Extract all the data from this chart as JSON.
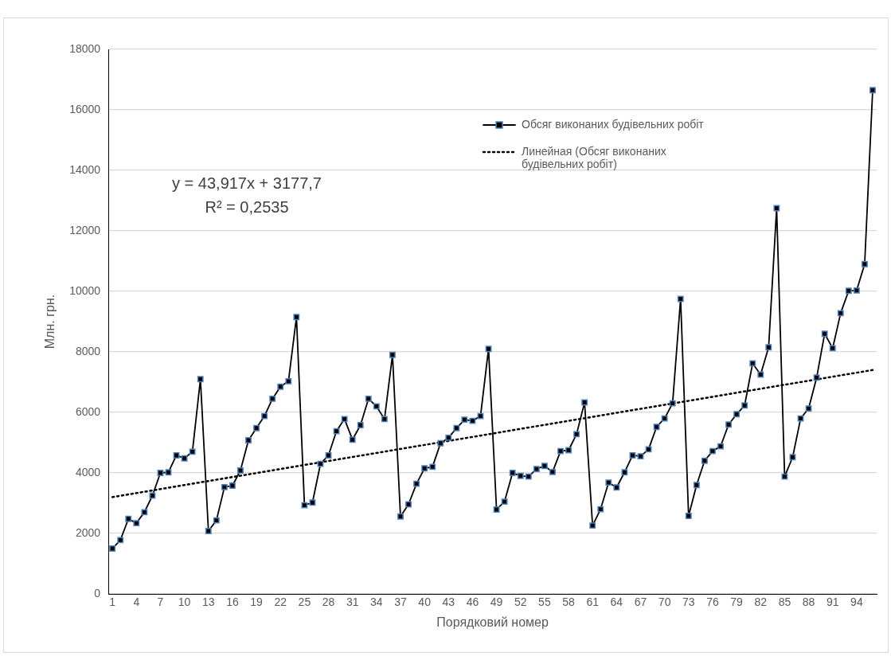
{
  "chart_data": {
    "type": "line",
    "xlabel": "Порядковий номер",
    "ylabel": "Млн. грн.",
    "x": [
      1,
      2,
      3,
      4,
      5,
      6,
      7,
      8,
      9,
      10,
      11,
      12,
      13,
      14,
      15,
      16,
      17,
      18,
      19,
      20,
      21,
      22,
      23,
      24,
      25,
      26,
      27,
      28,
      29,
      30,
      31,
      32,
      33,
      34,
      35,
      36,
      37,
      38,
      39,
      40,
      41,
      42,
      43,
      44,
      45,
      46,
      47,
      48,
      49,
      50,
      51,
      52,
      53,
      54,
      55,
      56,
      57,
      58,
      59,
      60,
      61,
      62,
      63,
      64,
      65,
      66,
      67,
      68,
      69,
      70,
      71,
      72,
      73,
      74,
      75,
      76,
      77,
      78,
      79,
      80,
      81,
      82,
      83,
      84,
      85,
      86,
      87,
      88,
      89,
      90,
      91,
      92,
      93,
      94,
      95,
      96
    ],
    "series": [
      {
        "name": "Обсяг виконаних будівельних робіт",
        "color": "#000000",
        "marker": "square",
        "line_style": "solid",
        "values": [
          1500,
          1780,
          2480,
          2340,
          2700,
          3250,
          4000,
          4020,
          4580,
          4480,
          4700,
          7100,
          2080,
          2430,
          3530,
          3580,
          4080,
          5080,
          5480,
          5880,
          6450,
          6850,
          7030,
          9150,
          2930,
          3020,
          4300,
          4580,
          5380,
          5780,
          5100,
          5580,
          6450,
          6200,
          5780,
          7900,
          2560,
          2960,
          3640,
          4150,
          4200,
          4980,
          5160,
          5480,
          5760,
          5720,
          5880,
          8100,
          2790,
          3050,
          4000,
          3900,
          3880,
          4130,
          4230,
          4030,
          4720,
          4750,
          5280,
          6330,
          2260,
          2800,
          3680,
          3520,
          4020,
          4580,
          4550,
          4780,
          5520,
          5800,
          6300,
          9750,
          2580,
          3600,
          4400,
          4720,
          4880,
          5600,
          5940,
          6230,
          7620,
          7250,
          8150,
          12750,
          3880,
          4520,
          5800,
          6130,
          7150,
          8600,
          8120,
          9280,
          10020,
          10030,
          10900,
          16650
        ]
      },
      {
        "name": "Линейная (Обсяг виконаних будівельних робіт)",
        "type": "line",
        "color": "#000000",
        "marker": "none",
        "line_style": "dotted",
        "x": [
          1,
          96
        ],
        "values": [
          3200,
          7400
        ]
      }
    ],
    "xlim": [
      0.5,
      96.5
    ],
    "xticks": [
      1,
      4,
      7,
      10,
      13,
      16,
      19,
      22,
      25,
      28,
      31,
      34,
      37,
      40,
      43,
      46,
      49,
      52,
      55,
      58,
      61,
      64,
      67,
      70,
      73,
      76,
      79,
      82,
      85,
      88,
      91,
      94
    ],
    "ylim": [
      0,
      18000
    ],
    "yticks": [
      0,
      2000,
      4000,
      6000,
      8000,
      10000,
      12000,
      14000,
      16000,
      18000
    ],
    "grid": "y",
    "legend": "top right",
    "annotations": [
      "y = 43,917x + 3177,7\nR² = 0,2535"
    ]
  }
}
